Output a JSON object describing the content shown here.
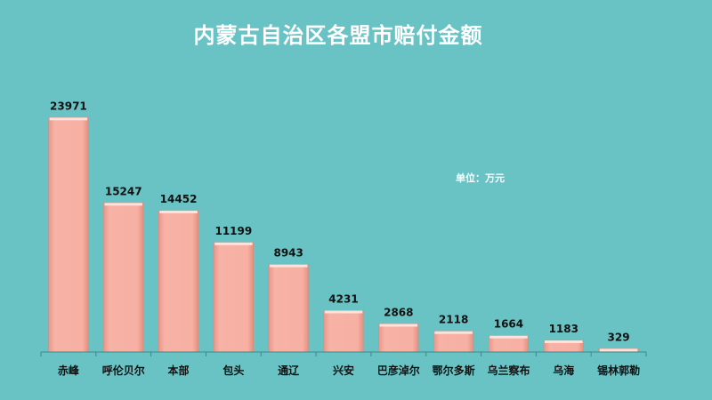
{
  "chart_data": {
    "type": "bar",
    "title": "内蒙古自治区各盟市赔付金额",
    "unit_note": "单位：万元",
    "categories": [
      "赤峰",
      "呼伦贝尔",
      "本部",
      "包头",
      "通辽",
      "兴安",
      "巴彦淖尔",
      "鄂尔多斯",
      "乌兰察布",
      "乌海",
      "锡林郭勒"
    ],
    "values": [
      23971,
      15247,
      14452,
      11199,
      8943,
      4231,
      2868,
      2118,
      1664,
      1183,
      329
    ],
    "ylim": [
      0,
      24000
    ],
    "grid": false,
    "legend": "none",
    "colors": {
      "background": "#69c3c4",
      "bar": "#f4a89a",
      "bar_edge": "#d98a7d",
      "axis": "#3a8a8b"
    }
  }
}
